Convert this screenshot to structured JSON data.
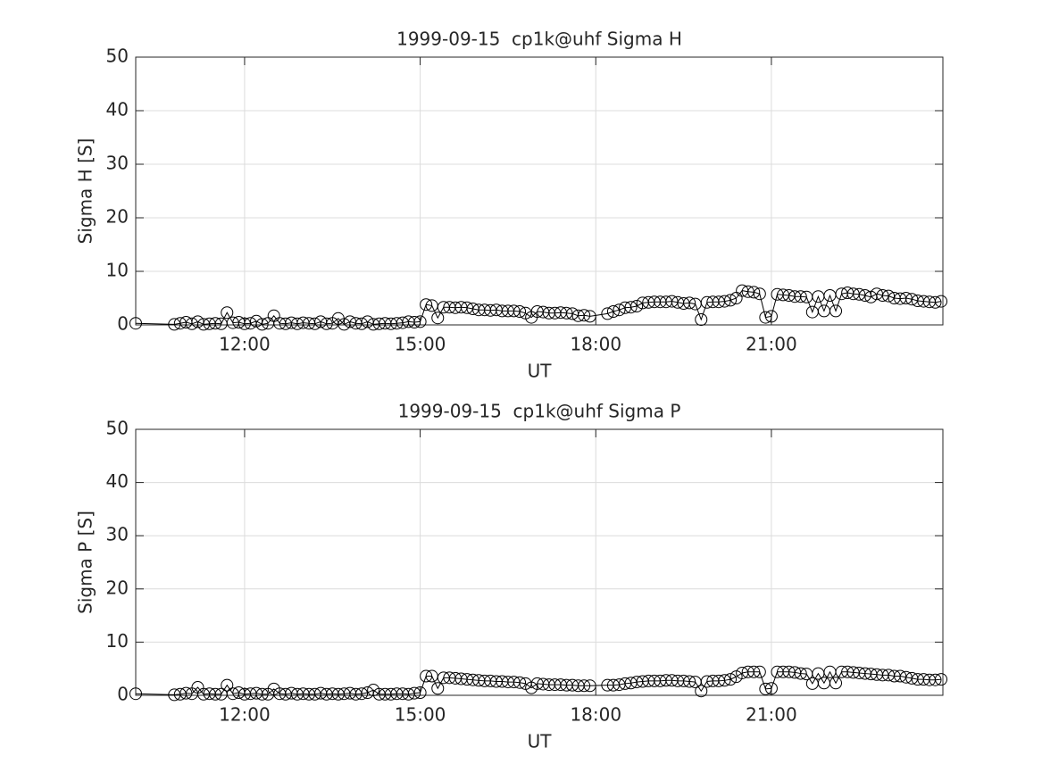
{
  "chart_data": [
    {
      "type": "line",
      "title": "1999-09-15  cp1k@uhf Sigma H",
      "xlabel": "UT",
      "ylabel": "Sigma H [S]",
      "xlim": [
        10.14,
        23.93
      ],
      "xticks": [
        {
          "value": 12,
          "label": "12:00"
        },
        {
          "value": 15,
          "label": "15:00"
        },
        {
          "value": 18,
          "label": "18:00"
        },
        {
          "value": 21,
          "label": "21:00"
        }
      ],
      "ylim": [
        0,
        50
      ],
      "yticks": [
        0,
        10,
        20,
        30,
        40,
        50
      ],
      "grid": true,
      "series": [
        {
          "color": "#000000",
          "x": [
            10.14,
            10.8,
            10.9,
            11.0,
            11.1,
            11.2,
            11.3,
            11.4,
            11.5,
            11.6,
            11.7,
            11.8,
            11.9,
            12.0,
            12.1,
            12.2,
            12.3,
            12.4,
            12.5,
            12.6,
            12.7,
            12.8,
            12.9,
            13.0,
            13.1,
            13.2,
            13.3,
            13.4,
            13.5,
            13.6,
            13.7,
            13.8,
            13.9,
            14.0,
            14.1,
            14.2,
            14.3,
            14.4,
            14.5,
            14.6,
            14.7,
            14.8,
            14.9,
            15.0,
            15.1,
            15.2,
            15.3,
            15.4,
            15.5,
            15.6,
            15.7,
            15.8,
            15.9,
            16.0,
            16.1,
            16.2,
            16.3,
            16.4,
            16.5,
            16.6,
            16.7,
            16.8,
            16.9,
            17.0,
            17.1,
            17.2,
            17.3,
            17.4,
            17.5,
            17.6,
            17.7,
            17.8,
            17.9,
            18.2,
            18.3,
            18.4,
            18.5,
            18.6,
            18.7,
            18.8,
            18.9,
            19.0,
            19.1,
            19.2,
            19.3,
            19.4,
            19.5,
            19.6,
            19.7,
            19.8,
            19.9,
            20.0,
            20.1,
            20.2,
            20.3,
            20.4,
            20.5,
            20.6,
            20.7,
            20.8,
            20.9,
            21.0,
            21.1,
            21.2,
            21.3,
            21.4,
            21.5,
            21.6,
            21.7,
            21.8,
            21.9,
            22.0,
            22.1,
            22.2,
            22.3,
            22.4,
            22.5,
            22.6,
            22.7,
            22.8,
            22.9,
            23.0,
            23.1,
            23.2,
            23.3,
            23.4,
            23.5,
            23.6,
            23.7,
            23.8,
            23.9
          ],
          "values": [
            0.3,
            0.1,
            0.3,
            0.5,
            0.2,
            0.6,
            0.1,
            0.2,
            0.3,
            0.2,
            2.3,
            0.4,
            0.5,
            0.2,
            0.3,
            0.7,
            0.1,
            0.3,
            1.7,
            0.3,
            0.2,
            0.4,
            0.2,
            0.4,
            0.3,
            0.2,
            0.6,
            0.2,
            0.3,
            1.2,
            0.1,
            0.6,
            0.3,
            0.2,
            0.6,
            0.1,
            0.2,
            0.3,
            0.2,
            0.3,
            0.4,
            0.6,
            0.5,
            0.6,
            3.8,
            3.6,
            1.3,
            3.3,
            3.3,
            3.2,
            3.3,
            3.2,
            3.0,
            2.8,
            2.8,
            2.7,
            2.8,
            2.6,
            2.6,
            2.6,
            2.5,
            2.2,
            1.4,
            2.5,
            2.4,
            2.2,
            2.2,
            2.3,
            2.2,
            2.1,
            1.7,
            1.8,
            1.6,
            2.1,
            2.5,
            2.8,
            3.2,
            3.3,
            3.5,
            4.1,
            4.2,
            4.3,
            4.3,
            4.3,
            4.4,
            4.2,
            4.0,
            4.1,
            3.9,
            1.0,
            4.2,
            4.3,
            4.3,
            4.4,
            4.6,
            5.0,
            6.4,
            6.2,
            6.1,
            5.8,
            1.4,
            1.6,
            5.7,
            5.6,
            5.5,
            5.3,
            5.3,
            5.2,
            2.4,
            5.3,
            2.6,
            5.5,
            2.6,
            5.8,
            6.0,
            5.8,
            5.7,
            5.5,
            5.2,
            5.8,
            5.5,
            5.4,
            5.0,
            4.9,
            5.0,
            4.8,
            4.5,
            4.4,
            4.3,
            4.2,
            4.4
          ]
        }
      ]
    },
    {
      "type": "line",
      "title": "1999-09-15  cp1k@uhf Sigma P",
      "xlabel": "UT",
      "ylabel": "Sigma P [S]",
      "xlim": [
        10.14,
        23.93
      ],
      "xticks": [
        {
          "value": 12,
          "label": "12:00"
        },
        {
          "value": 15,
          "label": "15:00"
        },
        {
          "value": 18,
          "label": "18:00"
        },
        {
          "value": 21,
          "label": "21:00"
        }
      ],
      "ylim": [
        0,
        50
      ],
      "yticks": [
        0,
        10,
        20,
        30,
        40,
        50
      ],
      "grid": true,
      "series": [
        {
          "color": "#000000",
          "x": [
            10.14,
            10.8,
            10.9,
            11.0,
            11.1,
            11.2,
            11.3,
            11.4,
            11.5,
            11.6,
            11.7,
            11.8,
            11.9,
            12.0,
            12.1,
            12.2,
            12.3,
            12.4,
            12.5,
            12.6,
            12.7,
            12.8,
            12.9,
            13.0,
            13.1,
            13.2,
            13.3,
            13.4,
            13.5,
            13.6,
            13.7,
            13.8,
            13.9,
            14.0,
            14.1,
            14.2,
            14.3,
            14.4,
            14.5,
            14.6,
            14.7,
            14.8,
            14.9,
            15.0,
            15.1,
            15.2,
            15.3,
            15.4,
            15.5,
            15.6,
            15.7,
            15.8,
            15.9,
            16.0,
            16.1,
            16.2,
            16.3,
            16.4,
            16.5,
            16.6,
            16.7,
            16.8,
            16.9,
            17.0,
            17.1,
            17.2,
            17.3,
            17.4,
            17.5,
            17.6,
            17.7,
            17.8,
            17.9,
            18.2,
            18.3,
            18.4,
            18.5,
            18.6,
            18.7,
            18.8,
            18.9,
            19.0,
            19.1,
            19.2,
            19.3,
            19.4,
            19.5,
            19.6,
            19.7,
            19.8,
            19.9,
            20.0,
            20.1,
            20.2,
            20.3,
            20.4,
            20.5,
            20.6,
            20.7,
            20.8,
            20.9,
            21.0,
            21.1,
            21.2,
            21.3,
            21.4,
            21.5,
            21.6,
            21.7,
            21.8,
            21.9,
            22.0,
            22.1,
            22.2,
            22.3,
            22.4,
            22.5,
            22.6,
            22.7,
            22.8,
            22.9,
            23.0,
            23.1,
            23.2,
            23.3,
            23.4,
            23.5,
            23.6,
            23.7,
            23.8,
            23.9
          ],
          "values": [
            0.3,
            0.1,
            0.2,
            0.4,
            0.3,
            1.5,
            0.2,
            0.3,
            0.2,
            0.2,
            1.9,
            0.3,
            0.5,
            0.2,
            0.3,
            0.4,
            0.2,
            0.2,
            1.2,
            0.3,
            0.2,
            0.4,
            0.2,
            0.3,
            0.2,
            0.2,
            0.4,
            0.2,
            0.3,
            0.2,
            0.3,
            0.4,
            0.2,
            0.3,
            0.5,
            1.0,
            0.2,
            0.2,
            0.2,
            0.3,
            0.3,
            0.2,
            0.4,
            0.5,
            3.6,
            3.6,
            1.3,
            3.3,
            3.3,
            3.2,
            3.1,
            3.0,
            2.9,
            2.8,
            2.7,
            2.7,
            2.6,
            2.6,
            2.5,
            2.5,
            2.4,
            2.2,
            1.4,
            2.2,
            2.1,
            2.0,
            2.0,
            2.0,
            1.9,
            1.9,
            1.8,
            1.8,
            1.8,
            1.9,
            1.9,
            2.0,
            2.2,
            2.3,
            2.5,
            2.6,
            2.7,
            2.7,
            2.7,
            2.8,
            2.8,
            2.7,
            2.7,
            2.6,
            2.5,
            0.8,
            2.6,
            2.7,
            2.7,
            2.8,
            3.0,
            3.5,
            4.2,
            4.4,
            4.4,
            4.4,
            1.2,
            1.3,
            4.4,
            4.4,
            4.4,
            4.3,
            4.1,
            4.0,
            2.2,
            4.1,
            2.3,
            4.4,
            2.3,
            4.4,
            4.4,
            4.3,
            4.2,
            4.1,
            4.0,
            3.9,
            3.8,
            3.8,
            3.6,
            3.6,
            3.4,
            3.2,
            3.0,
            3.0,
            2.9,
            2.9,
            3.0
          ]
        }
      ]
    }
  ]
}
